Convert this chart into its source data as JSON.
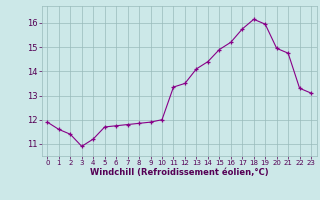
{
  "x": [
    0,
    1,
    2,
    3,
    4,
    5,
    6,
    7,
    8,
    9,
    10,
    11,
    12,
    13,
    14,
    15,
    16,
    17,
    18,
    19,
    20,
    21,
    22,
    23
  ],
  "y": [
    11.9,
    11.6,
    11.4,
    10.9,
    11.2,
    11.7,
    11.75,
    11.8,
    11.85,
    11.9,
    12.0,
    13.35,
    13.5,
    14.1,
    14.4,
    14.9,
    15.2,
    15.75,
    16.15,
    15.95,
    14.95,
    14.75,
    13.3,
    13.1
  ],
  "xlabel": "Windchill (Refroidissement éolien,°C)",
  "ylim": [
    10.5,
    16.7
  ],
  "xlim": [
    -0.5,
    23.5
  ],
  "yticks": [
    11,
    12,
    13,
    14,
    15,
    16
  ],
  "xticks": [
    0,
    1,
    2,
    3,
    4,
    5,
    6,
    7,
    8,
    9,
    10,
    11,
    12,
    13,
    14,
    15,
    16,
    17,
    18,
    19,
    20,
    21,
    22,
    23
  ],
  "line_color": "#880088",
  "marker": "+",
  "background_color": "#cce8e8",
  "grid_color": "#99bbbb",
  "xlabel_color": "#550055",
  "tick_label_color": "#550055"
}
